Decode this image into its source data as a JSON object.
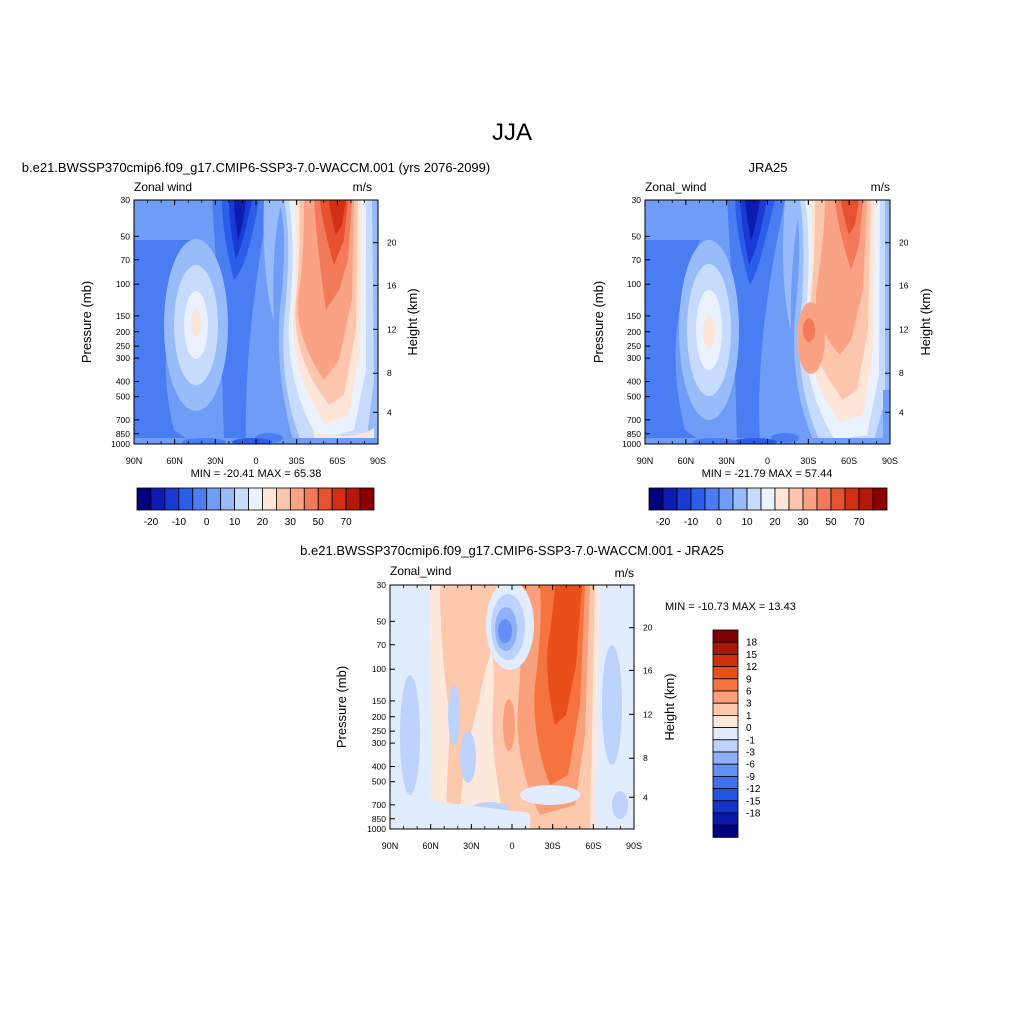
{
  "page": {
    "title": "JJA"
  },
  "colors": {
    "full_palette": [
      "#00007f",
      "#0c1cb2",
      "#1a3ad4",
      "#2b5ee8",
      "#4a7df2",
      "#6f9cf7",
      "#98bbfa",
      "#c6dbfd",
      "#eaf2ff",
      "#fde6d7",
      "#fcc6ad",
      "#f9a284",
      "#f27a5a",
      "#e6512f",
      "#d22f14",
      "#b4180a",
      "#8b0000"
    ],
    "diff_palette": [
      "#00007f",
      "#0a1aa8",
      "#1434cc",
      "#2453e0",
      "#3e71ee",
      "#6390f4",
      "#8fb0f8",
      "#bdd2fc",
      "#e1ecfe",
      "#fde9dc",
      "#fcc9ad",
      "#f9a07a",
      "#f5733f",
      "#ea4f1a",
      "#d0300a",
      "#a91805",
      "#7f0000"
    ]
  },
  "chart_data": [
    {
      "type": "contour",
      "title": "b.e21.BWSSP370cmip6.f09_g17.CMIP6-SSP3-7.0-WACCM.001 (yrs 2076-2099)",
      "left_label": "Zonal wind",
      "right_label": "m/s",
      "ylabel": "Pressure (mb)",
      "ylabel_right": "Height (km)",
      "xticks": [
        "90N",
        "60N",
        "30N",
        "0",
        "30S",
        "60S",
        "90S"
      ],
      "yticks": [
        "30",
        "50",
        "70",
        "100",
        "150",
        "200",
        "250",
        "300",
        "400",
        "500",
        "700",
        "850",
        "1000"
      ],
      "yticks_right": [
        "20",
        "16",
        "12",
        "8",
        "4"
      ],
      "stats": "MIN = -20.41  MAX =  65.38",
      "colorbar_labels": [
        "-20",
        "-10",
        "0",
        "10",
        "20",
        "30",
        "50",
        "70"
      ],
      "min": -20.41,
      "max": 65.38
    },
    {
      "type": "contour",
      "title": "JRA25",
      "left_label": "Zonal_wind",
      "right_label": "m/s",
      "ylabel": "Pressure (mb)",
      "ylabel_right": "Height (km)",
      "xticks": [
        "90N",
        "60N",
        "30N",
        "0",
        "30S",
        "60S",
        "90S"
      ],
      "yticks": [
        "30",
        "50",
        "70",
        "100",
        "150",
        "200",
        "250",
        "300",
        "400",
        "500",
        "700",
        "850",
        "1000"
      ],
      "yticks_right": [
        "20",
        "16",
        "12",
        "8",
        "4"
      ],
      "stats": "MIN = -21.79  MAX =  57.44",
      "colorbar_labels": [
        "-20",
        "-10",
        "0",
        "10",
        "20",
        "30",
        "50",
        "70"
      ],
      "min": -21.79,
      "max": 57.44
    },
    {
      "type": "contour",
      "title": "b.e21.BWSSP370cmip6.f09_g17.CMIP6-SSP3-7.0-WACCM.001 - JRA25",
      "left_label": "Zonal_wind",
      "right_label": "m/s",
      "ylabel": "Pressure (mb)",
      "ylabel_right": "Height (km)",
      "xticks": [
        "90N",
        "60N",
        "30N",
        "0",
        "30S",
        "60S",
        "90S"
      ],
      "yticks": [
        "30",
        "50",
        "70",
        "100",
        "150",
        "200",
        "250",
        "300",
        "400",
        "500",
        "700",
        "850",
        "1000"
      ],
      "yticks_right": [
        "20",
        "16",
        "12",
        "8",
        "4"
      ],
      "stats": "MIN = -10.73  MAX =  13.43",
      "colorbar_labels": [
        "18",
        "15",
        "12",
        "9",
        "6",
        "3",
        "1",
        "0",
        "-1",
        "-3",
        "-6",
        "-9",
        "-12",
        "-15",
        "-18"
      ],
      "min": -10.73,
      "max": 13.43
    }
  ]
}
